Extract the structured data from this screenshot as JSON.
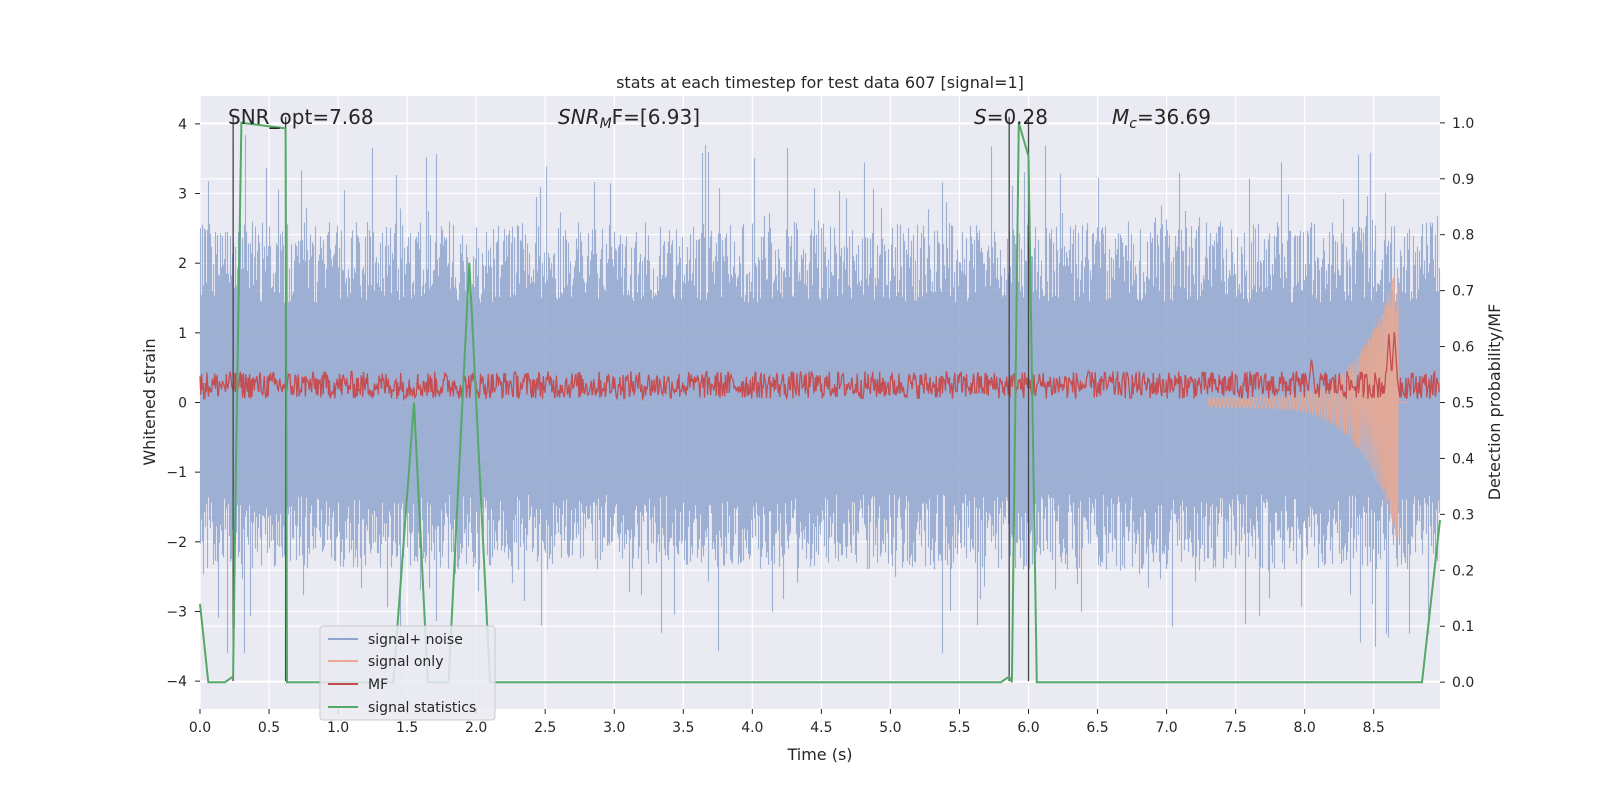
{
  "chart_data": {
    "type": "line",
    "title": "stats at each timestep for test data 607 [signal=1]",
    "xlabel": "Time (s)",
    "ylabel_left": "Whitened strain",
    "ylabel_right": "Detection probability/MF",
    "xlim": [
      0.0,
      8.98
    ],
    "ylim_left": [
      -4.4,
      4.4
    ],
    "ylim_right": [
      -0.048,
      1.048
    ],
    "x_ticks": [
      "0.0",
      "0.5",
      "1.0",
      "1.5",
      "2.0",
      "2.5",
      "3.0",
      "3.5",
      "4.0",
      "4.5",
      "5.0",
      "5.5",
      "6.0",
      "6.5",
      "7.0",
      "7.5",
      "8.0",
      "8.5"
    ],
    "y_ticks_left": [
      "−4",
      "−3",
      "−2",
      "−1",
      "0",
      "1",
      "2",
      "3",
      "4"
    ],
    "y_ticks_right": [
      "0.0",
      "0.1",
      "0.2",
      "0.3",
      "0.4",
      "0.5",
      "0.6",
      "0.7",
      "0.8",
      "0.9",
      "1.0"
    ],
    "grid": true,
    "legend_position": "lower-left",
    "annotations": {
      "snr_opt": "SNR_opt=7.68",
      "snr_mf_prefix": "SNR",
      "snr_mf_sub": "M",
      "snr_mf_rest": "F=[6.93]",
      "s_var": "S",
      "s_val": "=0.28",
      "mc_var": "M",
      "mc_sub": "c",
      "mc_val": "=36.69"
    },
    "vertical_markers_x": [
      0.24,
      0.62,
      5.86,
      6.0
    ],
    "series": [
      {
        "name": "signal+ noise",
        "color": "#8fa4ce",
        "amplitude_envelope": [
          -3.6,
          4.0
        ],
        "typical_range": [
          -2.4,
          2.6
        ],
        "sampling": "dense (~4096 Hz), 0.0 to 8.98 s"
      },
      {
        "name": "signal only",
        "color": "#e8a992",
        "description_points": [
          [
            0.0,
            0.0
          ],
          [
            7.6,
            0.0
          ],
          [
            8.2,
            0.2
          ],
          [
            8.5,
            0.9
          ],
          [
            8.65,
            2.0
          ],
          [
            8.68,
            -2.0
          ],
          [
            8.72,
            0.0
          ]
        ]
      },
      {
        "name": "MF",
        "color": "#c44e52",
        "baseline_left_units": [
          0.05,
          0.45
        ],
        "peaks": [
          [
            8.05,
            0.6
          ],
          [
            8.61,
            0.95
          ],
          [
            8.65,
            1.0
          ]
        ]
      },
      {
        "name": "signal statistics",
        "color": "#55a868",
        "axis": "right",
        "x": [
          0.0,
          0.06,
          0.18,
          0.24,
          0.26,
          0.3,
          0.62,
          0.63,
          0.68,
          0.76,
          1.2,
          1.4,
          1.55,
          1.65,
          1.8,
          1.95,
          2.1,
          2.2,
          2.4,
          5.8,
          5.86,
          5.88,
          5.93,
          6.0,
          6.06,
          6.1,
          8.85,
          8.98
        ],
        "y": [
          0.14,
          0.0,
          0.0,
          0.01,
          0.38,
          1.0,
          0.99,
          0.0,
          0.0,
          0.0,
          0.0,
          0.0,
          0.5,
          0.0,
          0.0,
          0.75,
          0.0,
          0.0,
          0.0,
          0.0,
          0.01,
          0.0,
          1.0,
          0.94,
          0.0,
          0.0,
          0.0,
          0.29
        ]
      }
    ]
  }
}
